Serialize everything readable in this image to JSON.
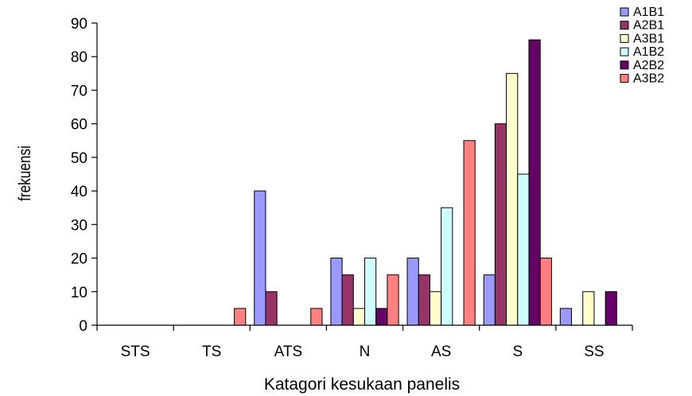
{
  "chart_data": {
    "type": "bar",
    "title": "",
    "xlabel": "Katagori kesukaan panelis",
    "ylabel": "frekuensi",
    "ylim": [
      0,
      90
    ],
    "yticks": [
      0,
      10,
      20,
      30,
      40,
      50,
      60,
      70,
      80,
      90
    ],
    "categories": [
      "STS",
      "TS",
      "ATS",
      "N",
      "AS",
      "S",
      "SS"
    ],
    "grid": false,
    "legend_position": "top-right",
    "series": [
      {
        "name": "A1B1",
        "color": "#9999ff",
        "values": [
          0,
          0,
          40,
          20,
          20,
          15,
          5
        ]
      },
      {
        "name": "A2B1",
        "color": "#993366",
        "values": [
          0,
          0,
          10,
          15,
          15,
          60,
          0
        ]
      },
      {
        "name": "A3B1",
        "color": "#ffffcc",
        "values": [
          0,
          0,
          0,
          5,
          10,
          75,
          10
        ]
      },
      {
        "name": "A1B2",
        "color": "#ccffff",
        "values": [
          0,
          0,
          0,
          20,
          35,
          45,
          0
        ]
      },
      {
        "name": "A2B2",
        "color": "#660066",
        "values": [
          0,
          0,
          0,
          5,
          0,
          85,
          10
        ]
      },
      {
        "name": "A3B2",
        "color": "#ff8080",
        "values": [
          0,
          5,
          5,
          15,
          55,
          20,
          0
        ]
      }
    ]
  }
}
